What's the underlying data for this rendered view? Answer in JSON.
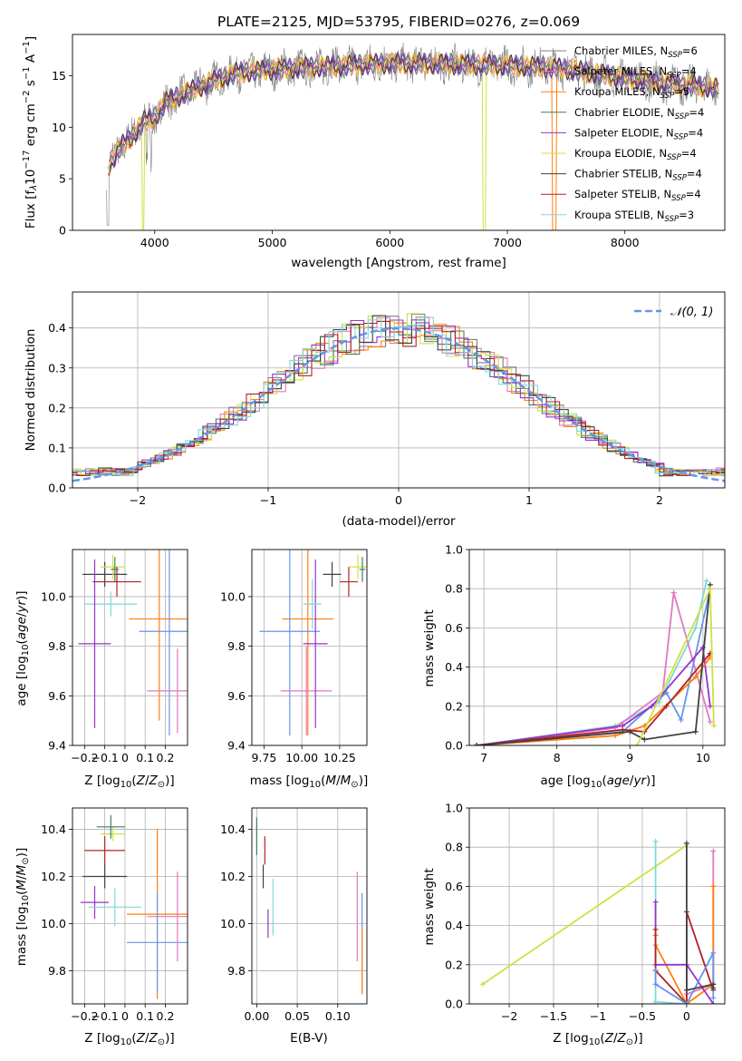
{
  "colors": {
    "chabrier_miles": "#808080",
    "salpeter_miles": "#e377c2",
    "kroupa_miles": "#ff7f0e",
    "chabrier_elodie": "#3f7f5f",
    "salpeter_elodie": "#9932cc",
    "kroupa_elodie": "#d0e040",
    "chabrier_stelib": "#404040",
    "salpeter_stelib": "#b22222",
    "kroupa_stelib": "#80d8d8",
    "blue": "#6495ed",
    "lime": "#c8ec4a"
  },
  "legend_spectrum": [
    {
      "key": "chabrier_miles",
      "label": "Chabrier MILES, N",
      "sub": "SSP",
      "tail": "=6"
    },
    {
      "key": "salpeter_miles",
      "label": "Salpeter MILES, N",
      "sub": "SSP",
      "tail": "=4"
    },
    {
      "key": "kroupa_miles",
      "label": "Kroupa MILES, N",
      "sub": "SSP",
      "tail": "=5"
    },
    {
      "key": "chabrier_elodie",
      "label": "Chabrier ELODIE, N",
      "sub": "SSP",
      "tail": "=4"
    },
    {
      "key": "salpeter_elodie",
      "label": "Salpeter ELODIE, N",
      "sub": "SSP",
      "tail": "=4"
    },
    {
      "key": "kroupa_elodie",
      "label": "Kroupa ELODIE, N",
      "sub": "SSP",
      "tail": "=4"
    },
    {
      "key": "chabrier_stelib",
      "label": "Chabrier STELIB, N",
      "sub": "SSP",
      "tail": "=4"
    },
    {
      "key": "salpeter_stelib",
      "label": "Salpeter STELIB, N",
      "sub": "SSP",
      "tail": "=4"
    },
    {
      "key": "kroupa_stelib",
      "label": "Kroupa STELIB, N",
      "sub": "SSP",
      "tail": "=3"
    }
  ],
  "chart_data": [
    {
      "id": "spectrum",
      "type": "line",
      "title": "PLATE=2125, MJD=53795, FIBERID=0276, z=0.069",
      "xlabel": "wavelength [Angstrom, rest frame]",
      "ylabel": "Flux [f",
      "xlim": [
        3300,
        8850
      ],
      "ylim": [
        0,
        19
      ],
      "xticks": [
        4000,
        5000,
        6000,
        7000,
        8000
      ],
      "yticks": [
        0,
        5,
        10,
        15
      ],
      "continuum": [
        [
          3590,
          6
        ],
        [
          3650,
          7
        ],
        [
          3700,
          8
        ],
        [
          3800,
          9
        ],
        [
          3900,
          10.5
        ],
        [
          4000,
          11
        ],
        [
          4100,
          12.5
        ],
        [
          4200,
          13
        ],
        [
          4300,
          13.5
        ],
        [
          4400,
          14
        ],
        [
          4500,
          14.5
        ],
        [
          4700,
          15.3
        ],
        [
          5000,
          15.6
        ],
        [
          5300,
          15.8
        ],
        [
          5600,
          16
        ],
        [
          6000,
          16.2
        ],
        [
          6300,
          16.2
        ],
        [
          6600,
          16.1
        ],
        [
          7000,
          16
        ],
        [
          7400,
          15.8
        ],
        [
          7700,
          15.3
        ],
        [
          8000,
          14.8
        ],
        [
          8300,
          14.3
        ],
        [
          8600,
          14
        ],
        [
          8800,
          13.8
        ]
      ]
    },
    {
      "id": "residuals",
      "type": "line",
      "xlabel": "(data-model)/error",
      "ylabel": "Normed distribution",
      "xlim": [
        -2.5,
        2.5
      ],
      "ylim": [
        0,
        0.49
      ],
      "xticks": [
        -2,
        -1,
        0,
        1,
        2
      ],
      "yticks": [
        0.0,
        0.1,
        0.2,
        0.3,
        0.4
      ],
      "legend": "𝒩(0, 1)",
      "gaussian": {
        "mean": 0,
        "sigma": 1
      }
    },
    {
      "id": "age_vs_Z",
      "type": "scatter",
      "xlabel": "Z [log",
      "ylabel": "age  [log",
      "xlim": [
        -0.26,
        0.31
      ],
      "ylim": [
        9.4,
        10.19
      ],
      "xticks": [
        -0.2,
        -0.1,
        0.0,
        0.1,
        0.2
      ],
      "yticks": [
        9.4,
        9.6,
        9.8,
        10.0
      ],
      "points": [
        {
          "c": "chabrier_stelib",
          "x": -0.1,
          "xe": 0.11,
          "y": 10.09,
          "ye": 0.05
        },
        {
          "c": "kroupa_elodie",
          "x": -0.06,
          "xe": 0.06,
          "y": 10.12,
          "ye": 0.05
        },
        {
          "c": "salpeter_stelib",
          "x": -0.04,
          "xe": 0.12,
          "y": 10.06,
          "ye": 0.06
        },
        {
          "c": "kroupa_stelib",
          "x": -0.07,
          "xe": 0.13,
          "y": 9.97,
          "ye": 0.05
        },
        {
          "c": "chabrier_elodie",
          "x": -0.05,
          "xe": 0.02,
          "y": 10.11,
          "ye": 0.05
        },
        {
          "c": "kroupa_miles",
          "x": 0.17,
          "xe": 0.15,
          "y": 9.91,
          "ye": 0.41
        },
        {
          "c": "blue",
          "x": 0.22,
          "xe": 0.15,
          "y": 9.86,
          "ye": 0.42
        },
        {
          "c": "salpeter_miles",
          "x": 0.26,
          "xe": 0.15,
          "y": 9.62,
          "ye": 0.17
        },
        {
          "c": "salpeter_elodie",
          "x": -0.15,
          "xe": 0.08,
          "y": 9.81,
          "ye": 0.34
        }
      ]
    },
    {
      "id": "age_vs_mass",
      "type": "scatter",
      "xlabel": "mass [log",
      "ylabel": "",
      "xlim": [
        9.67,
        10.43
      ],
      "ylim": [
        9.4,
        10.19
      ],
      "xticks": [
        9.75,
        10.0,
        10.25
      ],
      "xticklabels": [
        "9.75",
        "10.00",
        "10.25"
      ],
      "yticks": [
        9.4,
        9.6,
        9.8,
        10.0
      ],
      "points": [
        {
          "c": "kroupa_miles",
          "x": 10.04,
          "xe": 0.17,
          "y": 9.91,
          "ye": 0.47
        },
        {
          "c": "blue",
          "x": 9.92,
          "xe": 0.2,
          "y": 9.86,
          "ye": 0.42
        },
        {
          "c": "salpeter_miles",
          "x": 10.03,
          "xe": 0.17,
          "y": 9.62,
          "ye": 0.18
        },
        {
          "c": "salpeter_elodie",
          "x": 10.09,
          "xe": 0.08,
          "y": 9.81,
          "ye": 0.34
        },
        {
          "c": "kroupa_stelib",
          "x": 10.07,
          "xe": 0.06,
          "y": 9.97,
          "ye": 0.1
        },
        {
          "c": "chabrier_stelib",
          "x": 10.2,
          "xe": 0.06,
          "y": 10.09,
          "ye": 0.05
        },
        {
          "c": "salpeter_stelib",
          "x": 10.31,
          "xe": 0.06,
          "y": 10.06,
          "ye": 0.06
        },
        {
          "c": "kroupa_elodie",
          "x": 10.37,
          "xe": 0.06,
          "y": 10.12,
          "ye": 0.05
        },
        {
          "c": "chabrier_elodie",
          "x": 10.4,
          "xe": 0.02,
          "y": 10.11,
          "ye": 0.05
        }
      ]
    },
    {
      "id": "weight_vs_age",
      "type": "line",
      "xlabel": "age  [log",
      "ylabel": "mass weight",
      "xlim": [
        6.8,
        10.3
      ],
      "ylim": [
        0,
        1.0
      ],
      "xticks": [
        7,
        8,
        9,
        10
      ],
      "yticks": [
        0.0,
        0.2,
        0.4,
        0.6,
        0.8,
        1.0
      ],
      "series": [
        {
          "c": "kroupa_stelib",
          "x": [
            6.9,
            8.8,
            9.4,
            9.9,
            10.05
          ],
          "y": [
            0.0,
            0.1,
            0.22,
            0.6,
            0.84
          ]
        },
        {
          "c": "salpeter_miles",
          "x": 6.9,
          "xs": [
            6.9,
            8.8,
            9.45,
            9.6,
            10.1
          ],
          "y": [
            0.0,
            0.09,
            0.27,
            0.78,
            0.12
          ]
        },
        {
          "c": "blue",
          "x": [
            6.9,
            8.9,
            9.5,
            9.7,
            10.1
          ],
          "y": [
            0.0,
            0.07,
            0.27,
            0.13,
            0.8
          ]
        },
        {
          "c": "salpeter_elodie",
          "x": [
            6.9,
            8.9,
            9.3,
            10.0,
            10.1
          ],
          "y": [
            0.0,
            0.1,
            0.2,
            0.5,
            0.2
          ]
        },
        {
          "c": "kroupa_miles",
          "x": [
            6.9,
            8.8,
            9.2,
            9.9,
            10.1
          ],
          "y": [
            0.0,
            0.05,
            0.1,
            0.35,
            0.45
          ]
        },
        {
          "c": "salpeter_stelib",
          "x": [
            6.9,
            8.9,
            9.2,
            9.5,
            10.1
          ],
          "y": [
            0.0,
            0.08,
            0.07,
            0.2,
            0.47
          ]
        },
        {
          "c": "chabrier_stelib",
          "x": [
            6.9,
            9.0,
            9.2,
            9.9,
            10.1
          ],
          "y": [
            0.0,
            0.07,
            0.03,
            0.07,
            0.82
          ]
        },
        {
          "c": "kroupa_elodie",
          "x": [
            9.1,
            10.1,
            10.15
          ],
          "y": [
            0.0,
            0.8,
            0.1
          ]
        }
      ]
    },
    {
      "id": "mass_vs_Z",
      "type": "scatter",
      "xlabel": "Z [log",
      "ylabel": "mass [log",
      "xlim": [
        -0.26,
        0.31
      ],
      "ylim": [
        9.66,
        10.49
      ],
      "xticks": [
        -0.2,
        -0.1,
        0.0,
        0.1,
        0.2
      ],
      "yticks": [
        9.8,
        10.0,
        10.2,
        10.4
      ],
      "points": [
        {
          "c": "kroupa_elodie",
          "x": -0.06,
          "xe": 0.06,
          "y": 10.38,
          "ye": 0.03
        },
        {
          "c": "chabrier_elodie",
          "x": -0.07,
          "xe": 0.07,
          "y": 10.41,
          "ye": 0.05
        },
        {
          "c": "salpeter_stelib",
          "x": -0.1,
          "xe": 0.1,
          "y": 10.31,
          "ye": 0.06
        },
        {
          "c": "chabrier_stelib",
          "x": -0.1,
          "xe": 0.11,
          "y": 10.2,
          "ye": 0.05
        },
        {
          "c": "salpeter_elodie",
          "x": -0.15,
          "xe": 0.07,
          "y": 10.09,
          "ye": 0.07
        },
        {
          "c": "kroupa_stelib",
          "x": -0.05,
          "xe": 0.13,
          "y": 10.07,
          "ye": 0.08
        },
        {
          "c": "kroupa_miles",
          "x": 0.16,
          "xe": 0.15,
          "y": 10.04,
          "ye": 0.36
        },
        {
          "c": "blue",
          "x": 0.16,
          "xe": 0.15,
          "y": 9.92,
          "ye": 0.21
        },
        {
          "c": "salpeter_miles",
          "x": 0.26,
          "xe": 0.15,
          "y": 10.03,
          "ye": 0.19
        }
      ]
    },
    {
      "id": "mass_vs_EBV",
      "type": "scatter",
      "xlabel": "E(B-V)",
      "ylabel": "",
      "xlim": [
        -0.006,
        0.136
      ],
      "ylim": [
        9.66,
        10.49
      ],
      "xticks": [
        0.0,
        0.05,
        0.1
      ],
      "xticklabels": [
        "0.00",
        "0.05",
        "0.10"
      ],
      "yticks": [
        9.8,
        10.0,
        10.2,
        10.4
      ],
      "points": [
        {
          "c": "kroupa_elodie",
          "x": 0.0,
          "y": 10.38,
          "ye": 0.05
        },
        {
          "c": "chabrier_elodie",
          "x": 0.0,
          "y": 10.37,
          "ye": 0.08
        },
        {
          "c": "salpeter_stelib",
          "x": 0.01,
          "y": 10.31,
          "ye": 0.06
        },
        {
          "c": "chabrier_stelib",
          "x": 0.008,
          "y": 10.2,
          "ye": 0.05
        },
        {
          "c": "salpeter_elodie",
          "x": 0.014,
          "y": 10.0,
          "ye": 0.06
        },
        {
          "c": "kroupa_stelib",
          "x": 0.02,
          "y": 10.07,
          "ye": 0.12
        },
        {
          "c": "salpeter_miles",
          "x": 0.124,
          "y": 10.03,
          "ye": 0.19
        },
        {
          "c": "blue",
          "x": 0.13,
          "y": 9.92,
          "ye": 0.21
        },
        {
          "c": "kroupa_miles",
          "x": 0.13,
          "y": 9.84,
          "ye": 0.14
        }
      ]
    },
    {
      "id": "weight_vs_Z",
      "type": "line",
      "xlabel": "Z [log",
      "ylabel": "mass weight",
      "xlim": [
        -2.45,
        0.43
      ],
      "ylim": [
        0,
        1.0
      ],
      "xticks": [
        -2.0,
        -1.5,
        -1.0,
        -0.5,
        0.0
      ],
      "yticks": [
        0.0,
        0.2,
        0.4,
        0.6,
        0.8,
        1.0
      ],
      "series": [
        {
          "c": "kroupa_elodie",
          "x": [
            -2.3,
            0.0
          ],
          "y": [
            0.1,
            0.81
          ]
        },
        {
          "c": "kroupa_stelib",
          "x": [
            -0.35,
            -0.35,
            0.0
          ],
          "y": [
            0.83,
            0.01,
            0.0
          ]
        },
        {
          "c": "salpeter_miles",
          "x": [
            0.3,
            0.3,
            0.0,
            0.0
          ],
          "y": [
            0.78,
            0.1,
            0.05,
            0.0
          ]
        },
        {
          "c": "kroupa_miles",
          "x": [
            0.3,
            0.3,
            0.0,
            -0.35,
            -0.35
          ],
          "y": [
            0.6,
            0.1,
            0.0,
            0.3,
            0.35
          ]
        },
        {
          "c": "salpeter_elodie",
          "x": [
            -0.35,
            -0.35,
            0.0,
            0.3
          ],
          "y": [
            0.52,
            0.2,
            0.2,
            0.0
          ]
        },
        {
          "c": "salpeter_stelib",
          "x": [
            -0.35,
            -0.35,
            0.0,
            0.0,
            0.3
          ],
          "y": [
            0.38,
            0.17,
            0.0,
            0.47,
            0.07
          ]
        },
        {
          "c": "blue",
          "x": [
            -0.35,
            -0.35,
            0.0,
            0.3,
            0.3
          ],
          "y": [
            0.17,
            0.1,
            0.0,
            0.26,
            0.03
          ]
        },
        {
          "c": "chabrier_stelib",
          "x": [
            0.0,
            0.0,
            0.3,
            0.3
          ],
          "y": [
            0.82,
            0.07,
            0.1,
            0.08
          ]
        }
      ]
    }
  ]
}
